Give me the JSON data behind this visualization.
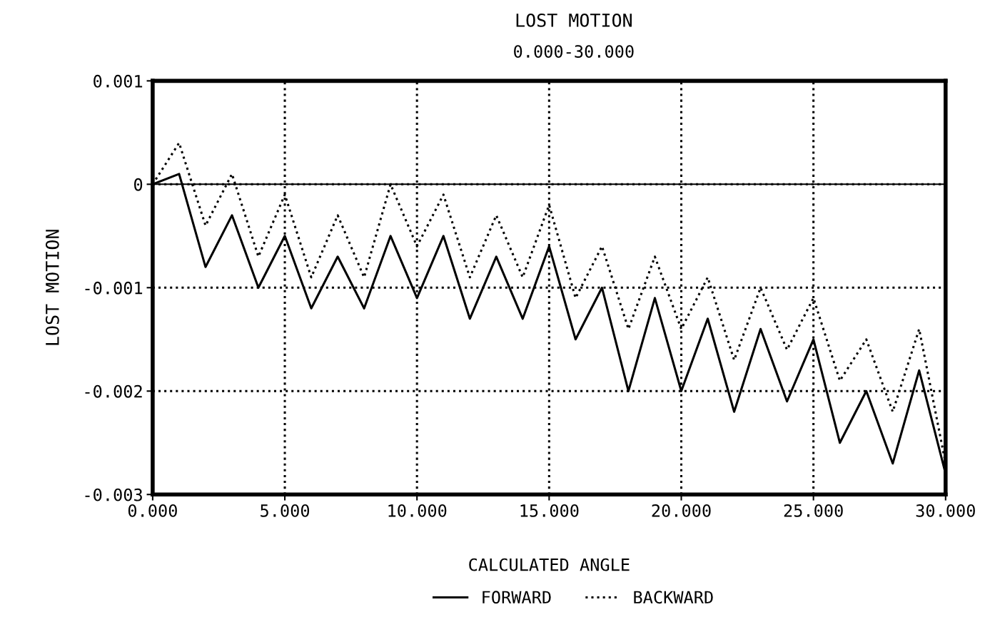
{
  "chart_data": {
    "type": "line",
    "title": "LOST MOTION",
    "subtitle": "0.000-30.000",
    "xlabel": "CALCULATED ANGLE",
    "ylabel": "LOST MOTION",
    "x": [
      0,
      1,
      2,
      3,
      4,
      5,
      6,
      7,
      8,
      9,
      10,
      11,
      12,
      13,
      14,
      15,
      16,
      17,
      18,
      19,
      20,
      21,
      22,
      23,
      24,
      25,
      26,
      27,
      28,
      29,
      30
    ],
    "series": [
      {
        "name": "FORWARD",
        "color": "#000000",
        "line_style": "solid",
        "values": [
          0,
          0.0001,
          -0.0008,
          -0.0003,
          -0.001,
          -0.0005,
          -0.0012,
          -0.0007,
          -0.0012,
          -0.0005,
          -0.0011,
          -0.0005,
          -0.0013,
          -0.0007,
          -0.0013,
          -0.0006,
          -0.0015,
          -0.001,
          -0.002,
          -0.0011,
          -0.002,
          -0.0013,
          -0.0022,
          -0.0014,
          -0.0021,
          -0.0015,
          -0.0025,
          -0.002,
          -0.0027,
          -0.0018,
          -0.0028
        ]
      },
      {
        "name": "BACKWARD",
        "color": "#000000",
        "line_style": "dotted",
        "values": [
          0,
          0.0004,
          -0.0004,
          0.0001,
          -0.0007,
          -0.0001,
          -0.0009,
          -0.0003,
          -0.0009,
          0,
          -0.0006,
          -0.0001,
          -0.0009,
          -0.0003,
          -0.0009,
          -0.0002,
          -0.0011,
          -0.0006,
          -0.0014,
          -0.0007,
          -0.0014,
          -0.0009,
          -0.0017,
          -0.001,
          -0.0016,
          -0.0011,
          -0.0019,
          -0.0015,
          -0.0022,
          -0.0014,
          -0.0027
        ]
      }
    ],
    "xlim": [
      0,
      30
    ],
    "ylim": [
      -0.003,
      0.001
    ],
    "xticks": [
      {
        "value": 0,
        "label": "0.000"
      },
      {
        "value": 5,
        "label": "5.000"
      },
      {
        "value": 10,
        "label": "10.000"
      },
      {
        "value": 15,
        "label": "15.000"
      },
      {
        "value": 20,
        "label": "20.000"
      },
      {
        "value": 25,
        "label": "25.000"
      },
      {
        "value": 30,
        "label": "30.000"
      }
    ],
    "yticks": [
      -0.003,
      -0.002,
      -0.001,
      0,
      0.001
    ],
    "ref_lines": [
      {
        "axis": "y",
        "value": 0,
        "color": "#000000",
        "line_style": "solid"
      }
    ],
    "grid": true,
    "legend": "bottom",
    "marker": "none"
  }
}
